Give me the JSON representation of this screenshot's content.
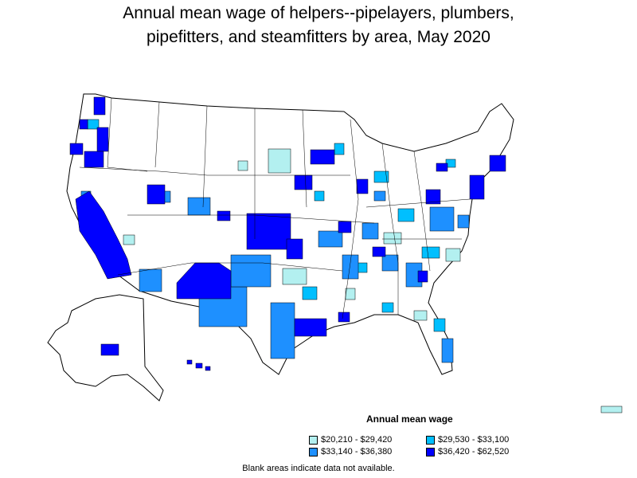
{
  "title_line1": "Annual mean wage of helpers--pipelayers, plumbers,",
  "title_line2": "pipefitters, and steamfitters by area, May 2020",
  "legend": {
    "title": "Annual mean wage",
    "items": [
      {
        "label": "$20,210 - $29,420",
        "color": "#b3f0f0"
      },
      {
        "label": "$29,530 - $33,100",
        "color": "#00bfff"
      },
      {
        "label": "$33,140 - $36,380",
        "color": "#1e90ff"
      },
      {
        "label": "$36,420 - $62,520",
        "color": "#0000ff"
      }
    ]
  },
  "footnote": "Blank areas indicate data not available."
}
